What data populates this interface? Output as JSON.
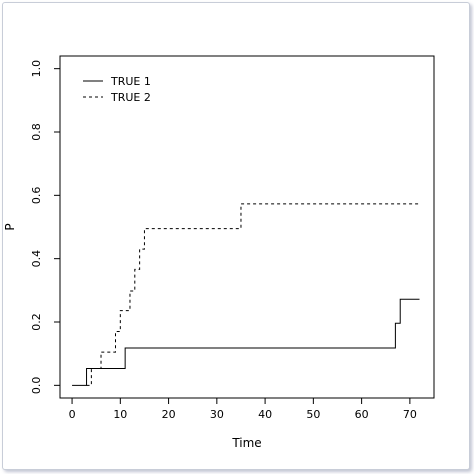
{
  "chart_data": {
    "type": "line",
    "step": true,
    "title": "",
    "xlabel": "Time",
    "ylabel": "P",
    "xlim": [
      -2.5,
      75
    ],
    "ylim": [
      -0.04,
      1.04
    ],
    "x_ticks": [
      0,
      10,
      20,
      30,
      40,
      50,
      60,
      70
    ],
    "y_ticks": [
      0.0,
      0.2,
      0.4,
      0.6,
      0.8,
      1.0
    ],
    "y_tick_labels": [
      "0.0",
      "0.2",
      "0.4",
      "0.6",
      "0.8",
      "1.0"
    ],
    "grid": false,
    "legend_position": "top-left",
    "series": [
      {
        "name": "TRUE 1",
        "line_style": "solid",
        "color": "#000000",
        "points": [
          [
            0,
            0.0
          ],
          [
            3,
            0.0
          ],
          [
            3,
            0.053
          ],
          [
            11,
            0.053
          ],
          [
            11,
            0.118
          ],
          [
            67,
            0.118
          ],
          [
            67,
            0.196
          ],
          [
            68,
            0.196
          ],
          [
            68,
            0.272
          ],
          [
            72,
            0.272
          ]
        ]
      },
      {
        "name": "TRUE 2",
        "line_style": "dashed",
        "color": "#000000",
        "points": [
          [
            3,
            0.0
          ],
          [
            4,
            0.0
          ],
          [
            4,
            0.053
          ],
          [
            6,
            0.053
          ],
          [
            6,
            0.105
          ],
          [
            9,
            0.105
          ],
          [
            9,
            0.17
          ],
          [
            10,
            0.17
          ],
          [
            10,
            0.236
          ],
          [
            12,
            0.236
          ],
          [
            12,
            0.298
          ],
          [
            13,
            0.298
          ],
          [
            13,
            0.366
          ],
          [
            14,
            0.366
          ],
          [
            14,
            0.43
          ],
          [
            15,
            0.43
          ],
          [
            15,
            0.495
          ],
          [
            35,
            0.495
          ],
          [
            35,
            0.573
          ],
          [
            72,
            0.573
          ]
        ]
      }
    ]
  }
}
